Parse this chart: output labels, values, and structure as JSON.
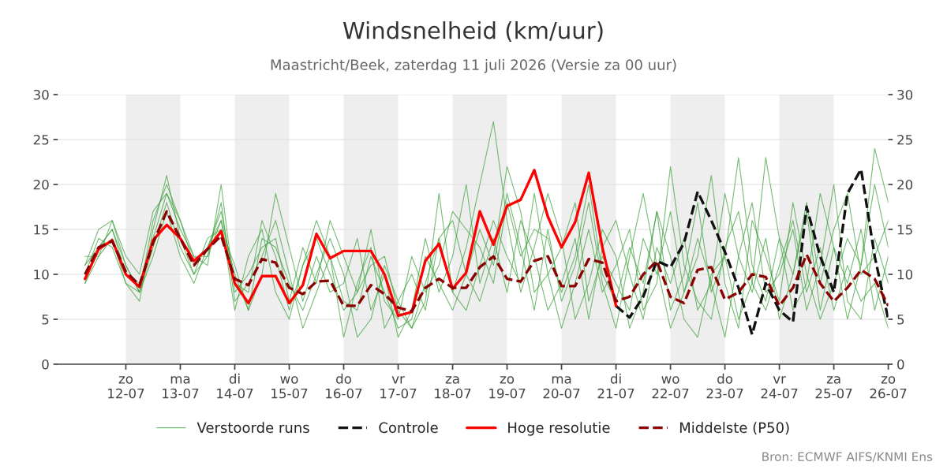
{
  "chart_data": {
    "type": "line",
    "title": "Windsnelheid (km/uur)",
    "subtitle": "Maastricht/Beek, zaterdag 11 juli 2026 (Versie za 00 uur)",
    "x": [
      "2026-07-11T06:00",
      "2026-07-11T12:00",
      "2026-07-11T18:00",
      "2026-07-12T00:00",
      "2026-07-12T06:00",
      "2026-07-12T12:00",
      "2026-07-12T18:00",
      "2026-07-13T00:00",
      "2026-07-13T06:00",
      "2026-07-13T12:00",
      "2026-07-13T18:00",
      "2026-07-14T00:00",
      "2026-07-14T06:00",
      "2026-07-14T12:00",
      "2026-07-14T18:00",
      "2026-07-15T00:00",
      "2026-07-15T06:00",
      "2026-07-15T12:00",
      "2026-07-15T18:00",
      "2026-07-16T00:00",
      "2026-07-16T06:00",
      "2026-07-16T12:00",
      "2026-07-16T18:00",
      "2026-07-17T00:00",
      "2026-07-17T06:00",
      "2026-07-17T12:00",
      "2026-07-17T18:00",
      "2026-07-18T00:00",
      "2026-07-18T06:00",
      "2026-07-18T12:00",
      "2026-07-18T18:00",
      "2026-07-19T00:00",
      "2026-07-19T06:00",
      "2026-07-19T12:00",
      "2026-07-19T18:00",
      "2026-07-20T00:00",
      "2026-07-20T06:00",
      "2026-07-20T12:00",
      "2026-07-20T18:00",
      "2026-07-21T00:00",
      "2026-07-21T06:00",
      "2026-07-21T12:00",
      "2026-07-21T18:00",
      "2026-07-22T00:00",
      "2026-07-22T06:00",
      "2026-07-22T12:00",
      "2026-07-22T18:00",
      "2026-07-23T00:00",
      "2026-07-23T06:00",
      "2026-07-23T12:00",
      "2026-07-23T18:00",
      "2026-07-24T00:00",
      "2026-07-24T06:00",
      "2026-07-24T12:00",
      "2026-07-24T18:00",
      "2026-07-25T00:00",
      "2026-07-25T06:00",
      "2026-07-25T12:00",
      "2026-07-25T18:00",
      "2026-07-26T00:00"
    ],
    "series": [
      {
        "name": "Verstoorde runs",
        "color": "#3aa03a",
        "line_style": "solid",
        "values": [
          11,
          15,
          16,
          11,
          8,
          16,
          20,
          16,
          11,
          13,
          16,
          10,
          6,
          14,
          13,
          9,
          6,
          10,
          14,
          10,
          3,
          5,
          11,
          7,
          4,
          9,
          14,
          8,
          13,
          20,
          27,
          16,
          8,
          13,
          19,
          14,
          5,
          9,
          15,
          12,
          4,
          8,
          17,
          12,
          5,
          3,
          10,
          12,
          5,
          9,
          23,
          14,
          6,
          9,
          19,
          13,
          5,
          11,
          24,
          18
        ]
      },
      {
        "color": "#3aa03a",
        "line_style": "solid",
        "values": [
          9,
          12,
          14,
          9,
          8,
          13,
          18,
          13,
          10,
          12,
          18,
          7,
          9,
          12,
          16,
          10,
          4,
          8,
          12,
          7,
          6,
          12,
          8,
          4,
          5,
          12,
          9,
          6,
          10,
          15,
          11,
          19,
          13,
          6,
          15,
          7,
          11,
          18,
          9,
          4,
          12,
          19,
          11,
          4,
          8,
          14,
          9,
          3,
          12,
          18,
          8,
          10,
          15,
          6,
          11,
          20,
          7,
          5,
          14,
          9
        ]
      },
      {
        "color": "#3aa03a",
        "line_style": "solid",
        "values": [
          11,
          13,
          15,
          10,
          9,
          14,
          19,
          15,
          12,
          12,
          16,
          6,
          12,
          15,
          8,
          5,
          11,
          16,
          12,
          3,
          9,
          13,
          4,
          7,
          10,
          6,
          14,
          16,
          10,
          7,
          12,
          22,
          17,
          8,
          10,
          13,
          18,
          7,
          12,
          9,
          6,
          14,
          10,
          17,
          8,
          12,
          21,
          9,
          4,
          16,
          12,
          7,
          18,
          10,
          5,
          9,
          14,
          11,
          20,
          13
        ]
      },
      {
        "color": "#3aa03a",
        "line_style": "solid",
        "values": [
          10,
          14,
          13,
          9,
          7,
          15,
          21,
          14,
          10,
          14,
          15,
          11,
          6,
          10,
          19,
          13,
          7,
          12,
          8,
          9,
          14,
          6,
          10,
          3,
          6,
          14,
          8,
          12,
          20,
          9,
          14,
          8,
          16,
          12,
          6,
          9,
          14,
          5,
          13,
          16,
          10,
          5,
          13,
          9,
          14,
          6,
          9,
          19,
          12,
          8,
          14,
          5,
          10,
          17,
          6,
          13,
          9,
          15,
          6,
          12
        ]
      },
      {
        "color": "#3aa03a",
        "line_style": "solid",
        "values": [
          9,
          13,
          15,
          11,
          8,
          12,
          17,
          12,
          9,
          13,
          17,
          9,
          8,
          16,
          12,
          6,
          11,
          14,
          10,
          6,
          8,
          11,
          12,
          6,
          4,
          7,
          19,
          8,
          6,
          11,
          16,
          12,
          9,
          19,
          10,
          4,
          9,
          15,
          8,
          11,
          15,
          6,
          9,
          22,
          11,
          7,
          5,
          13,
          17,
          9,
          6,
          11,
          16,
          8,
          13,
          6,
          11,
          7,
          9,
          4
        ]
      },
      {
        "color": "#3aa03a",
        "line_style": "solid",
        "values": [
          12,
          12,
          16,
          12,
          10,
          17,
          19,
          16,
          12,
          11,
          20,
          8,
          10,
          13,
          14,
          7,
          13,
          9,
          16,
          12,
          8,
          15,
          7,
          5,
          12,
          8,
          11,
          17,
          15,
          13,
          9,
          18,
          12,
          15,
          14,
          8,
          12,
          20,
          10,
          7,
          13,
          9,
          17,
          6,
          10,
          18,
          8,
          12,
          23,
          11,
          7,
          14,
          10,
          18,
          9,
          15,
          19,
          10,
          12,
          16
        ]
      },
      {
        "name": "Controle",
        "color": "#111111",
        "line_style": "dashed",
        "values": [
          null,
          null,
          null,
          null,
          null,
          null,
          null,
          null,
          null,
          null,
          null,
          null,
          null,
          null,
          null,
          null,
          null,
          null,
          null,
          null,
          null,
          null,
          null,
          null,
          null,
          null,
          null,
          null,
          null,
          null,
          null,
          null,
          null,
          null,
          null,
          null,
          null,
          null,
          null,
          6.5,
          5.2,
          7.5,
          11.5,
          10.8,
          13.5,
          19.2,
          16,
          12.5,
          8.5,
          3.3,
          9,
          6,
          4.7,
          17.5,
          12,
          8,
          19,
          21.7,
          12,
          5
        ]
      },
      {
        "name": "Hoge resolutie",
        "color": "#ff0000",
        "line_style": "solid",
        "values": [
          9.5,
          12.8,
          13.8,
          10,
          8.6,
          13.8,
          15.5,
          14,
          11.5,
          12.8,
          14.8,
          9,
          6.8,
          9.8,
          9.8,
          6.8,
          8.8,
          14.5,
          11.8,
          12.6,
          12.6,
          12.6,
          10,
          5.4,
          5.8,
          11.5,
          13.4,
          8.4,
          10.2,
          17,
          13.3,
          17.6,
          18.3,
          21.6,
          16.4,
          13,
          15.8,
          21.3,
          13,
          6.5,
          null,
          null,
          null,
          null,
          null,
          null,
          null,
          null,
          null,
          null,
          null,
          null,
          null,
          null,
          null,
          null,
          null,
          null,
          null,
          null
        ]
      },
      {
        "name": "Middelste (P50)",
        "color": "#8b0000",
        "line_style": "dashed",
        "values": [
          10,
          13,
          13.7,
          10.3,
          8.8,
          13.5,
          17,
          14,
          11,
          12.8,
          14.3,
          9.5,
          8.8,
          11.7,
          11.3,
          8.5,
          7.8,
          9.2,
          9.3,
          6.5,
          6.5,
          8.8,
          7.8,
          6.3,
          5.9,
          8.5,
          9.5,
          8.5,
          8.5,
          10.8,
          12,
          9.5,
          9.2,
          11.5,
          12,
          8.7,
          8.7,
          11.7,
          11.3,
          7,
          7.5,
          10,
          11.5,
          7.5,
          6.8,
          10.5,
          10.8,
          7.2,
          8,
          10,
          9.7,
          6.5,
          8.5,
          12.2,
          9,
          7,
          8.5,
          10.5,
          9.5,
          6.5
        ]
      }
    ],
    "xlim": [
      "2026-07-10T18:00",
      "2026-07-26T00:00"
    ],
    "xticks": [
      {
        "value": "2026-07-12",
        "label": "zo\n12-07"
      },
      {
        "value": "2026-07-13",
        "label": "ma\n13-07"
      },
      {
        "value": "2026-07-14",
        "label": "di\n14-07"
      },
      {
        "value": "2026-07-15",
        "label": "wo\n15-07"
      },
      {
        "value": "2026-07-16",
        "label": "do\n16-07"
      },
      {
        "value": "2026-07-17",
        "label": "vr\n17-07"
      },
      {
        "value": "2026-07-18",
        "label": "za\n18-07"
      },
      {
        "value": "2026-07-19",
        "label": "zo\n19-07"
      },
      {
        "value": "2026-07-20",
        "label": "ma\n20-07"
      },
      {
        "value": "2026-07-21",
        "label": "di\n21-07"
      },
      {
        "value": "2026-07-22",
        "label": "wo\n22-07"
      },
      {
        "value": "2026-07-23",
        "label": "do\n23-07"
      },
      {
        "value": "2026-07-24",
        "label": "vr\n24-07"
      },
      {
        "value": "2026-07-25",
        "label": "za\n25-07"
      },
      {
        "value": "2026-07-26",
        "label": "zo\n26-07"
      }
    ],
    "ylim": [
      0,
      30
    ],
    "yticks": [
      0,
      5,
      10,
      15,
      20,
      25,
      30
    ],
    "y2lim": [
      0,
      30
    ],
    "y2ticks": [
      0,
      5,
      10,
      15,
      20,
      25,
      30
    ],
    "bands": [
      {
        "axis": "x",
        "from": "2026-07-12",
        "to": "2026-07-13",
        "color": "#eeeeee"
      },
      {
        "axis": "x",
        "from": "2026-07-14",
        "to": "2026-07-15",
        "color": "#eeeeee"
      },
      {
        "axis": "x",
        "from": "2026-07-16",
        "to": "2026-07-17",
        "color": "#eeeeee"
      },
      {
        "axis": "x",
        "from": "2026-07-18",
        "to": "2026-07-19",
        "color": "#eeeeee"
      },
      {
        "axis": "x",
        "from": "2026-07-20",
        "to": "2026-07-21",
        "color": "#eeeeee"
      },
      {
        "axis": "x",
        "from": "2026-07-22",
        "to": "2026-07-23",
        "color": "#eeeeee"
      },
      {
        "axis": "x",
        "from": "2026-07-24",
        "to": "2026-07-25",
        "color": "#eeeeee"
      }
    ],
    "grid": "y",
    "legend": "bottom",
    "annotations": [
      "Bron: ECMWF AIFS/KNMI Ens"
    ]
  }
}
